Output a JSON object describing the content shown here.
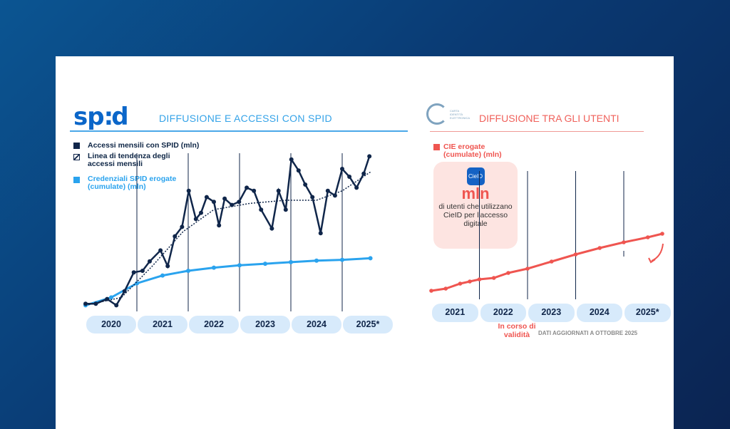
{
  "left": {
    "logo": "sp:d",
    "title": "DIFFUSIONE E ACCESSI CON SPID",
    "legend": [
      "Accessi mensili con SPID (mln)",
      "Linea di tendenza degli accessi mensili",
      "Credenziali SPID erogate (cumulate) (mln)"
    ]
  },
  "right": {
    "logo_text": "CARTA IDENTITÀ ELETTRONICA",
    "title": "DIFFUSIONE TRA GLI UTENTI",
    "legend": "CIE erogate (cumulate) (mln)",
    "box": {
      "icon": "CieID",
      "unit": "mln",
      "text": "di utenti che utilizzano CieID per l'accesso digitale"
    },
    "note": "In corso di validità",
    "footer": "DATI AGGIORNATI A OTTOBRE 2025"
  },
  "colors": {
    "spid_access": "#10264a",
    "spid_cred": "#2aa3ee",
    "cie": "#ef5550"
  },
  "chart_data": [
    {
      "type": "line",
      "title": "DIFFUSIONE E ACCESSI CON SPID",
      "ylim": [
        0,
        100
      ],
      "xlim": [
        2020,
        2025.9
      ],
      "categories": [
        "2020",
        "2021",
        "2022",
        "2023",
        "2024",
        "2025*"
      ],
      "series": [
        {
          "name": "Accessi mensili con SPID (mln)",
          "x": [
            2020.0,
            2020.2,
            2020.42,
            2020.6,
            2020.76,
            2020.94,
            2021.11,
            2021.25,
            2021.46,
            2021.6,
            2021.74,
            2021.88,
            2022.01,
            2022.15,
            2022.25,
            2022.36,
            2022.5,
            2022.6,
            2022.71,
            2022.85,
            2022.99,
            2023.14,
            2023.28,
            2023.42,
            2023.63,
            2023.76,
            2023.9,
            2024.01,
            2024.15,
            2024.28,
            2024.42,
            2024.58,
            2024.72,
            2024.86,
            2025.0,
            2025.14,
            2025.28,
            2025.42,
            2025.53
          ],
          "y": [
            4,
            4,
            7,
            3,
            12,
            24,
            25,
            31,
            38,
            28,
            47,
            53,
            76,
            58,
            62,
            72,
            69,
            54,
            71,
            67,
            69,
            78,
            76,
            64,
            52,
            76,
            64,
            96,
            89,
            80,
            72,
            49,
            76,
            73,
            90,
            85,
            78,
            87,
            98
          ]
        },
        {
          "name": "Linea di tendenza degli accessi mensili",
          "x": [
            2020,
            2020.7,
            2021.3,
            2021.9,
            2022.5,
            2023.2,
            2023.9,
            2024.5,
            2025.0,
            2025.55
          ],
          "y": [
            3,
            8,
            28,
            50,
            64,
            68,
            70,
            70,
            76,
            88
          ]
        },
        {
          "name": "Credenziali SPID erogate (cumulate) (mln)",
          "x": [
            2020,
            2020.5,
            2021,
            2021.5,
            2022,
            2022.5,
            2023,
            2023.5,
            2024,
            2024.5,
            2025,
            2025.55
          ],
          "y": [
            3,
            8,
            17,
            22,
            25,
            27,
            28.5,
            29.5,
            30.5,
            31.5,
            32,
            33
          ]
        }
      ]
    },
    {
      "type": "line",
      "title": "DIFFUSIONE TRA GLI UTENTI",
      "ylim": [
        0,
        100
      ],
      "xlim": [
        2021,
        2025.9
      ],
      "categories": [
        "2021",
        "2022",
        "2023",
        "2024",
        "2025*"
      ],
      "series": [
        {
          "name": "CIE erogate (cumulate) (mln)",
          "x": [
            2021.0,
            2021.3,
            2021.6,
            2021.8,
            2022.0,
            2022.3,
            2022.6,
            2023.0,
            2023.5,
            2024.0,
            2024.5,
            2025.0,
            2025.5,
            2025.8
          ],
          "y": [
            12,
            15,
            22,
            25,
            28,
            30,
            37,
            43,
            53,
            63,
            72,
            80,
            87,
            92
          ]
        }
      ]
    }
  ]
}
